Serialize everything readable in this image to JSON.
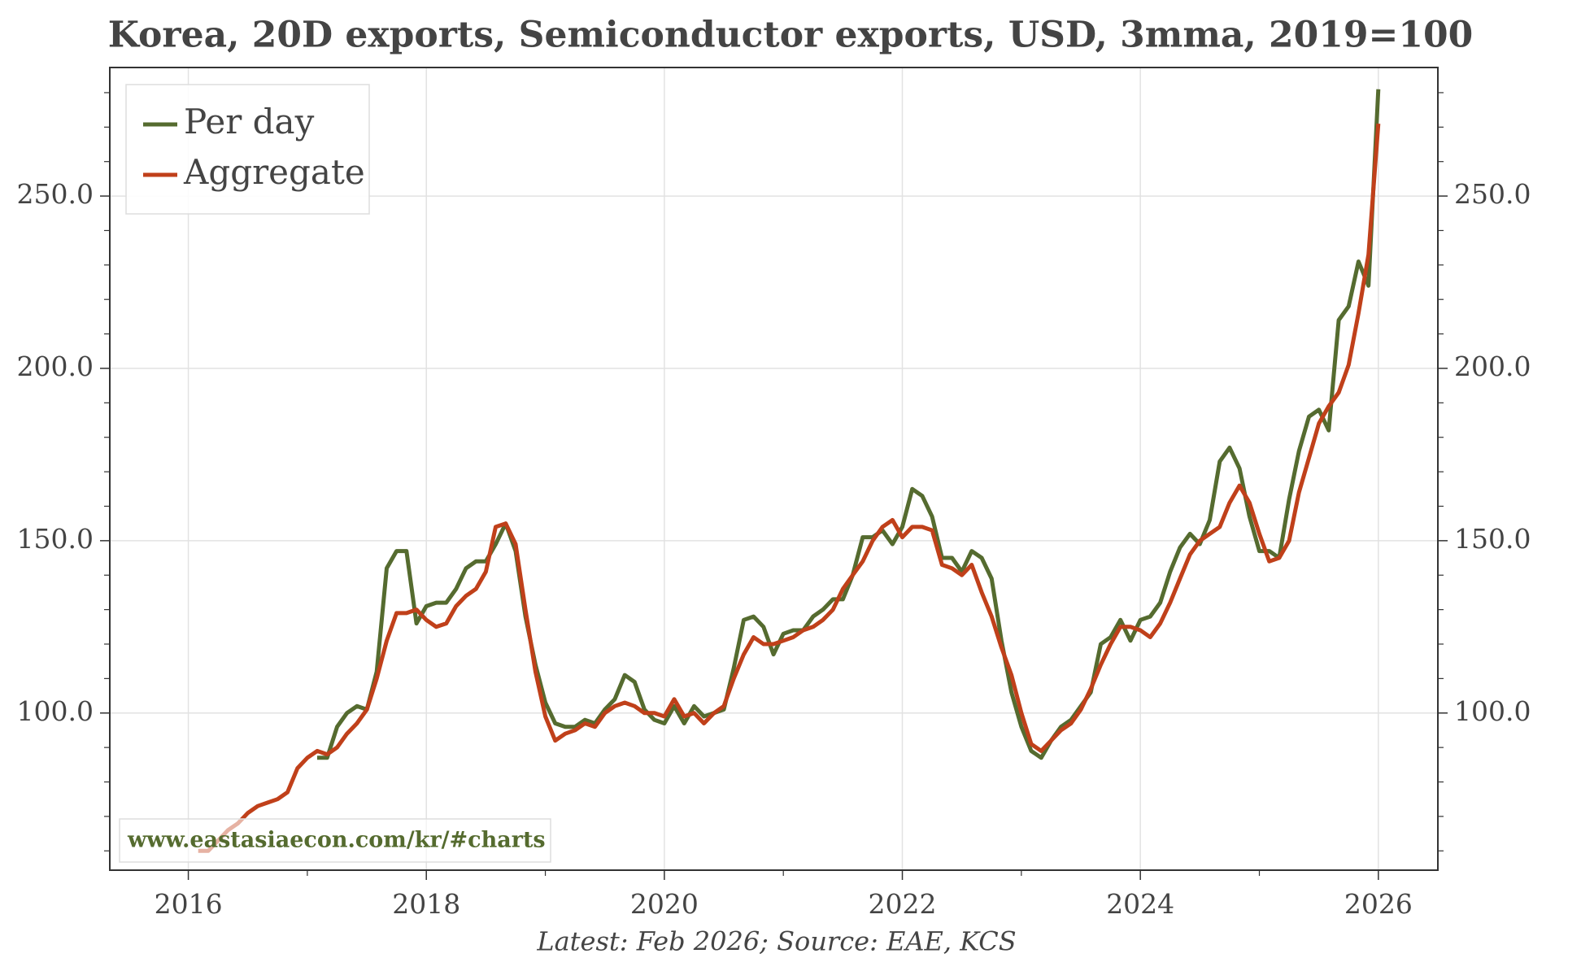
{
  "chart_data": {
    "type": "line",
    "title": "Korea, 20D exports, Semiconductor exports, USD, 3mma, 2019=100",
    "footnote": "Latest: Feb 2026; Source: EAE, KCS",
    "watermark": "www.eastasiaecon.com/kr/#charts",
    "x": [
      2016.083,
      2016.167,
      2016.25,
      2016.333,
      2016.417,
      2016.5,
      2016.583,
      2016.667,
      2016.75,
      2016.833,
      2016.917,
      2017,
      2017.083,
      2017.167,
      2017.25,
      2017.333,
      2017.417,
      2017.5,
      2017.583,
      2017.667,
      2017.75,
      2017.833,
      2017.917,
      2018,
      2018.083,
      2018.167,
      2018.25,
      2018.333,
      2018.417,
      2018.5,
      2018.583,
      2018.667,
      2018.75,
      2018.833,
      2018.917,
      2019,
      2019.083,
      2019.167,
      2019.25,
      2019.333,
      2019.417,
      2019.5,
      2019.583,
      2019.667,
      2019.75,
      2019.833,
      2019.917,
      2020,
      2020.083,
      2020.167,
      2020.25,
      2020.333,
      2020.417,
      2020.5,
      2020.583,
      2020.667,
      2020.75,
      2020.833,
      2020.917,
      2021,
      2021.083,
      2021.167,
      2021.25,
      2021.333,
      2021.417,
      2021.5,
      2021.583,
      2021.667,
      2021.75,
      2021.833,
      2021.917,
      2022,
      2022.083,
      2022.167,
      2022.25,
      2022.333,
      2022.417,
      2022.5,
      2022.583,
      2022.667,
      2022.75,
      2022.833,
      2022.917,
      2023,
      2023.083,
      2023.167,
      2023.25,
      2023.333,
      2023.417,
      2023.5,
      2023.583,
      2023.667,
      2023.75,
      2023.833,
      2023.917,
      2024,
      2024.083,
      2024.167,
      2024.25,
      2024.333,
      2024.417,
      2024.5,
      2024.583,
      2024.667,
      2024.75,
      2024.833,
      2024.917,
      2025,
      2025.083,
      2025.167,
      2025.25,
      2025.333,
      2025.417,
      2025.5,
      2025.583,
      2025.667,
      2025.75,
      2025.833,
      2025.917,
      2026
    ],
    "series": [
      {
        "name": "Per day",
        "color": "#556b2f",
        "values": [
          null,
          null,
          null,
          null,
          null,
          null,
          null,
          null,
          null,
          null,
          null,
          null,
          87,
          87,
          96,
          100,
          102,
          101,
          112,
          142,
          147,
          147,
          126,
          131,
          132,
          132,
          136,
          142,
          144,
          144,
          149,
          155,
          147,
          128,
          114,
          103,
          97,
          96,
          96,
          98,
          97,
          101,
          104,
          111,
          109,
          101,
          98,
          97,
          102,
          97,
          102,
          99,
          100,
          101,
          113,
          127,
          128,
          125,
          117,
          123,
          124,
          124,
          128,
          130,
          133,
          133,
          140,
          151,
          151,
          153,
          149,
          154,
          165,
          163,
          157,
          145,
          145,
          141,
          147,
          145,
          139,
          121,
          106,
          96,
          89,
          87,
          92,
          96,
          98,
          102,
          106,
          120,
          122,
          127,
          121,
          127,
          128,
          132,
          141,
          148,
          152,
          149,
          156,
          173,
          177,
          171,
          157,
          147,
          147,
          145,
          162,
          176,
          186,
          188,
          182,
          214,
          218,
          231,
          224,
          281
        ]
      },
      {
        "name": "Aggregate",
        "color": "#c0401a",
        "values": [
          60,
          60,
          63,
          66,
          68,
          71,
          73,
          74,
          75,
          77,
          84,
          87,
          89,
          88,
          90,
          94,
          97,
          101,
          110,
          121,
          129,
          129,
          130,
          127,
          125,
          126,
          131,
          134,
          136,
          141,
          154,
          155,
          149,
          130,
          112,
          99,
          92,
          94,
          95,
          97,
          96,
          100,
          102,
          103,
          102,
          100,
          100,
          99,
          104,
          99,
          100,
          97,
          100,
          102,
          110,
          117,
          122,
          120,
          120,
          121,
          122,
          124,
          125,
          127,
          130,
          136,
          140,
          144,
          150,
          154,
          156,
          151,
          154,
          154,
          153,
          143,
          142,
          140,
          143,
          135,
          128,
          119,
          111,
          100,
          91,
          89,
          92,
          95,
          97,
          101,
          107,
          114,
          120,
          125,
          125,
          124,
          122,
          126,
          132,
          139,
          146,
          150,
          152,
          154,
          161,
          166,
          161,
          152,
          144,
          145,
          150,
          164,
          174,
          184,
          189,
          193,
          201,
          216,
          233,
          271
        ]
      }
    ],
    "xlim": [
      2015.34,
      2026.5
    ],
    "xticks": [
      2016,
      2018,
      2020,
      2022,
      2024,
      2026
    ],
    "xminorticks": [
      2017,
      2019,
      2021,
      2023,
      2025
    ],
    "ylim": [
      54.4,
      287.3
    ],
    "yticks": [
      {
        "value": 100,
        "label": "100.0"
      },
      {
        "value": 150,
        "label": "150.0"
      },
      {
        "value": 200,
        "label": "200.0"
      },
      {
        "value": 250,
        "label": "250.0"
      }
    ],
    "yminorticks": [
      60,
      70,
      80,
      90,
      110,
      120,
      130,
      140,
      160,
      170,
      180,
      190,
      210,
      220,
      230,
      240,
      260,
      270,
      280
    ],
    "grid": true,
    "legend": "upper left",
    "secondary_y_labels": true
  }
}
